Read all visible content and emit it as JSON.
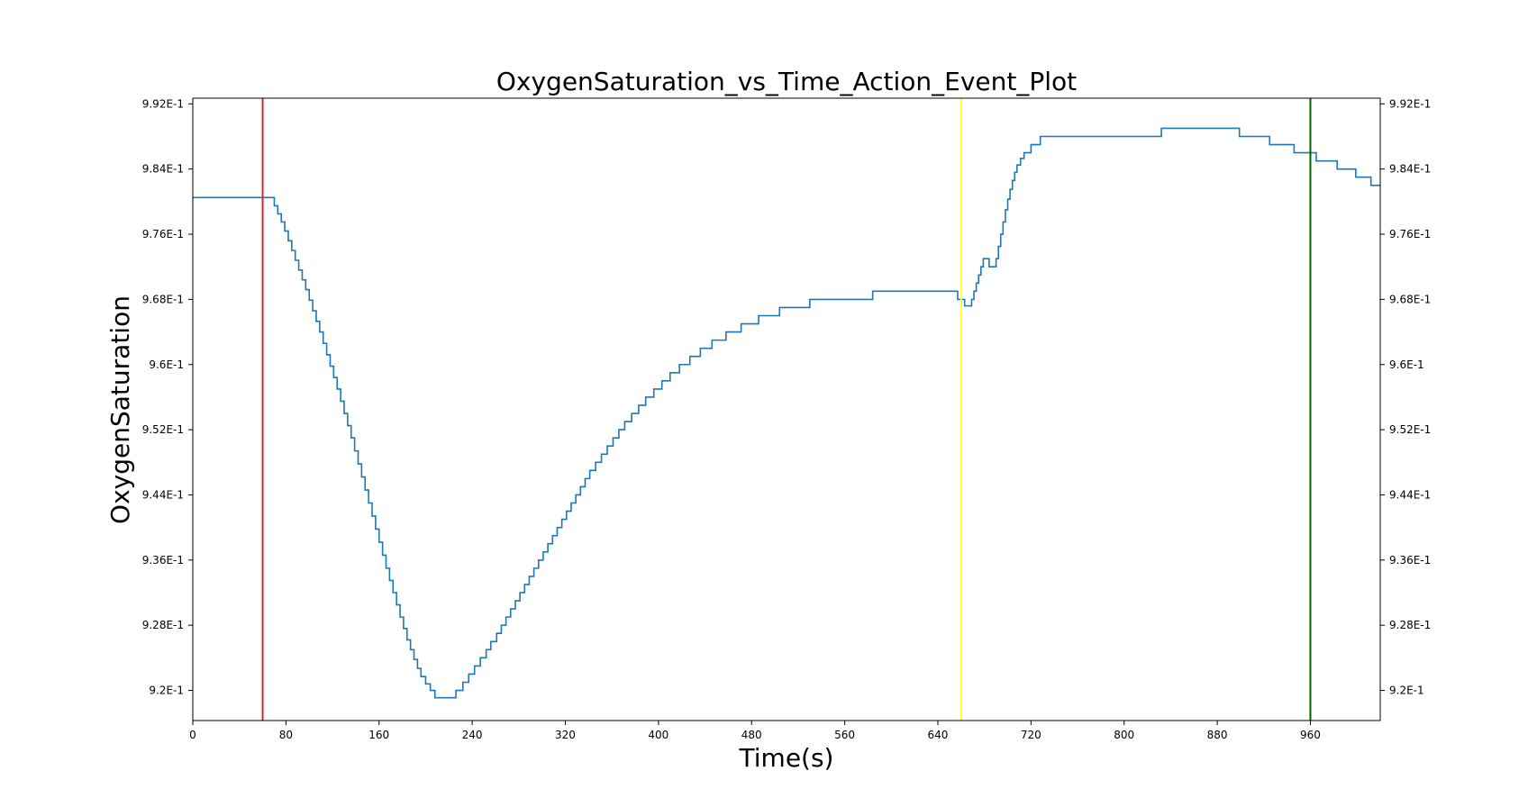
{
  "chart_data": {
    "type": "line",
    "title": "OxygenSaturation_vs_Time_Action_Event_Plot",
    "xlabel": "Time(s)",
    "ylabel": "OxygenSaturation",
    "xlim": [
      0,
      1020
    ],
    "ylim": [
      0.9163,
      0.9927
    ],
    "x_ticks": [
      0,
      80,
      160,
      240,
      320,
      400,
      480,
      560,
      640,
      720,
      800,
      880,
      960
    ],
    "x_tick_labels": [
      "0",
      "80",
      "160",
      "240",
      "320",
      "400",
      "480",
      "560",
      "640",
      "720",
      "800",
      "880",
      "960"
    ],
    "y_ticks": [
      0.92,
      0.928,
      0.936,
      0.944,
      0.952,
      0.96,
      0.968,
      0.976,
      0.984,
      0.992
    ],
    "y_tick_labels": [
      "9.2E-1",
      "9.28E-1",
      "9.36E-1",
      "9.44E-1",
      "9.52E-1",
      "9.6E-1",
      "9.68E-1",
      "9.76E-1",
      "9.84E-1",
      "9.92E-1"
    ],
    "right_y_axis": true,
    "grid": false,
    "series": [
      {
        "color": "#1f77b4",
        "points": [
          [
            0,
            0.9805
          ],
          [
            67,
            0.9805
          ],
          [
            70,
            0.9795
          ],
          [
            73,
            0.9785
          ],
          [
            76,
            0.9775
          ],
          [
            79,
            0.9764
          ],
          [
            82,
            0.9752
          ],
          [
            85,
            0.974
          ],
          [
            88,
            0.9728
          ],
          [
            91,
            0.9716
          ],
          [
            94,
            0.9704
          ],
          [
            97,
            0.9692
          ],
          [
            100,
            0.9679
          ],
          [
            103,
            0.9666
          ],
          [
            106,
            0.9653
          ],
          [
            109,
            0.964
          ],
          [
            112,
            0.9626
          ],
          [
            115,
            0.9612
          ],
          [
            118,
            0.9598
          ],
          [
            121,
            0.9584
          ],
          [
            124,
            0.957
          ],
          [
            127,
            0.9555
          ],
          [
            130,
            0.954
          ],
          [
            133,
            0.9525
          ],
          [
            136,
            0.951
          ],
          [
            139,
            0.9494
          ],
          [
            142,
            0.9478
          ],
          [
            145,
            0.9462
          ],
          [
            148,
            0.9446
          ],
          [
            151,
            0.943
          ],
          [
            154,
            0.9414
          ],
          [
            157,
            0.9398
          ],
          [
            160,
            0.9382
          ],
          [
            163,
            0.9366
          ],
          [
            166,
            0.935
          ],
          [
            169,
            0.9335
          ],
          [
            172,
            0.932
          ],
          [
            175,
            0.9305
          ],
          [
            178,
            0.929
          ],
          [
            181,
            0.9276
          ],
          [
            184,
            0.9262
          ],
          [
            187,
            0.925
          ],
          [
            190,
            0.9238
          ],
          [
            193,
            0.9227
          ],
          [
            196,
            0.9217
          ],
          [
            200,
            0.9208
          ],
          [
            204,
            0.92
          ],
          [
            208,
            0.9191
          ],
          [
            220,
            0.9191
          ],
          [
            222,
            0.9191
          ],
          [
            226,
            0.92
          ],
          [
            232,
            0.921
          ],
          [
            237,
            0.922
          ],
          [
            242,
            0.923
          ],
          [
            247,
            0.924
          ],
          [
            252,
            0.925
          ],
          [
            256,
            0.926
          ],
          [
            261,
            0.927
          ],
          [
            265,
            0.928
          ],
          [
            269,
            0.929
          ],
          [
            273,
            0.93
          ],
          [
            277,
            0.931
          ],
          [
            281,
            0.932
          ],
          [
            285,
            0.933
          ],
          [
            289,
            0.934
          ],
          [
            293,
            0.935
          ],
          [
            297,
            0.936
          ],
          [
            301,
            0.937
          ],
          [
            305,
            0.938
          ],
          [
            309,
            0.939
          ],
          [
            313,
            0.94
          ],
          [
            317,
            0.941
          ],
          [
            321,
            0.942
          ],
          [
            325,
            0.943
          ],
          [
            329,
            0.944
          ],
          [
            333,
            0.945
          ],
          [
            337,
            0.946
          ],
          [
            341,
            0.947
          ],
          [
            346,
            0.948
          ],
          [
            351,
            0.949
          ],
          [
            356,
            0.95
          ],
          [
            361,
            0.951
          ],
          [
            366,
            0.952
          ],
          [
            371,
            0.953
          ],
          [
            377,
            0.954
          ],
          [
            383,
            0.955
          ],
          [
            389,
            0.956
          ],
          [
            396,
            0.957
          ],
          [
            403,
            0.958
          ],
          [
            410,
            0.959
          ],
          [
            418,
            0.96
          ],
          [
            427,
            0.961
          ],
          [
            436,
            0.962
          ],
          [
            446,
            0.963
          ],
          [
            458,
            0.964
          ],
          [
            471,
            0.965
          ],
          [
            486,
            0.966
          ],
          [
            504,
            0.967
          ],
          [
            530,
            0.968
          ],
          [
            584,
            0.969
          ],
          [
            610,
            0.969
          ],
          [
            657,
            0.968
          ],
          [
            663,
            0.9672
          ],
          [
            667,
            0.9672
          ],
          [
            669,
            0.968
          ],
          [
            671,
            0.969
          ],
          [
            673,
            0.97
          ],
          [
            675,
            0.971
          ],
          [
            677,
            0.972
          ],
          [
            679,
            0.973
          ],
          [
            684,
            0.972
          ],
          [
            688,
            0.972
          ],
          [
            690,
            0.973
          ],
          [
            692,
            0.9745
          ],
          [
            694,
            0.976
          ],
          [
            696,
            0.9775
          ],
          [
            698,
            0.979
          ],
          [
            700,
            0.9803
          ],
          [
            702,
            0.9815
          ],
          [
            704,
            0.9826
          ],
          [
            706,
            0.9836
          ],
          [
            708,
            0.9845
          ],
          [
            711,
            0.9853
          ],
          [
            714,
            0.986
          ],
          [
            720,
            0.987
          ],
          [
            728,
            0.988
          ],
          [
            830,
            0.988
          ],
          [
            832,
            0.989
          ],
          [
            897,
            0.989
          ],
          [
            899,
            0.988
          ],
          [
            923,
            0.988
          ],
          [
            925,
            0.987
          ],
          [
            944,
            0.987
          ],
          [
            946,
            0.986
          ],
          [
            963,
            0.986
          ],
          [
            965,
            0.985
          ],
          [
            981,
            0.985
          ],
          [
            983,
            0.984
          ],
          [
            997,
            0.984
          ],
          [
            999,
            0.983
          ],
          [
            1010,
            0.983
          ],
          [
            1012,
            0.982
          ],
          [
            1020,
            0.982
          ]
        ]
      }
    ],
    "events": [
      {
        "x": 60,
        "color": "#d62728"
      },
      {
        "x": 660,
        "color": "#ffff33"
      },
      {
        "x": 960,
        "color": "#006400"
      }
    ]
  }
}
